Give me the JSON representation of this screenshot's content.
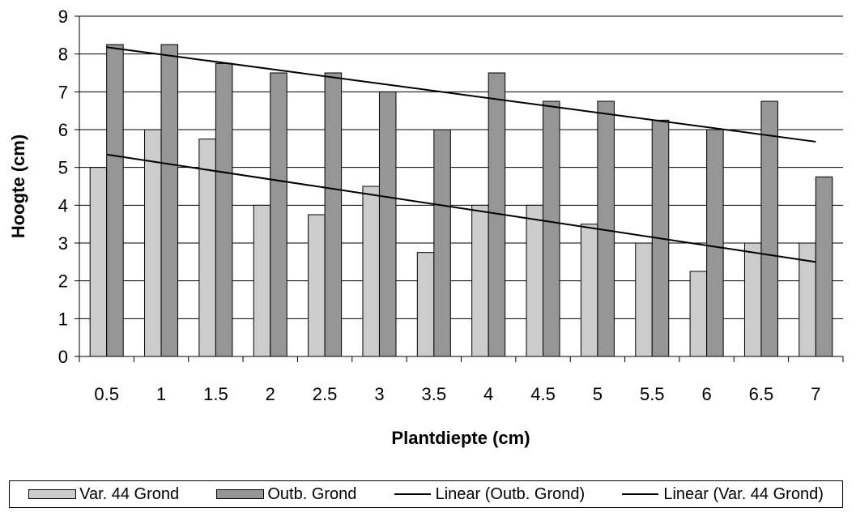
{
  "chart_data": {
    "type": "bar",
    "categories": [
      "0.5",
      "1",
      "1.5",
      "2",
      "2.5",
      "3",
      "3.5",
      "4",
      "4.5",
      "5",
      "5.5",
      "6",
      "6.5",
      "7"
    ],
    "series": [
      {
        "name": "Var. 44 Grond",
        "color": "#cccccc",
        "values": [
          5,
          6,
          5.75,
          4,
          3.75,
          4.5,
          2.75,
          4,
          4,
          3.5,
          3,
          2.25,
          3,
          3
        ]
      },
      {
        "name": "Outb. Grond",
        "color": "#969696",
        "values": [
          8.25,
          8.25,
          7.75,
          7.5,
          7.5,
          7,
          6,
          7.5,
          6.75,
          6.75,
          6.25,
          6,
          6.75,
          4.75
        ]
      }
    ],
    "trendlines": [
      {
        "name": "Linear (Outb. Grond)",
        "type": "linear",
        "series": "Outb. Grond",
        "start": 8.18,
        "end": 5.68
      },
      {
        "name": "Linear (Var. 44 Grond)",
        "type": "linear",
        "series": "Var. 44 Grond",
        "start": 5.34,
        "end": 2.5
      }
    ],
    "xlabel": "Plantdiepte (cm)",
    "ylabel": "Hoogte (cm)",
    "ylim": [
      0,
      9
    ],
    "yticks": [
      "0",
      "1",
      "2",
      "3",
      "4",
      "5",
      "6",
      "7",
      "8",
      "9"
    ],
    "grid": true,
    "legend_position": "bottom"
  }
}
